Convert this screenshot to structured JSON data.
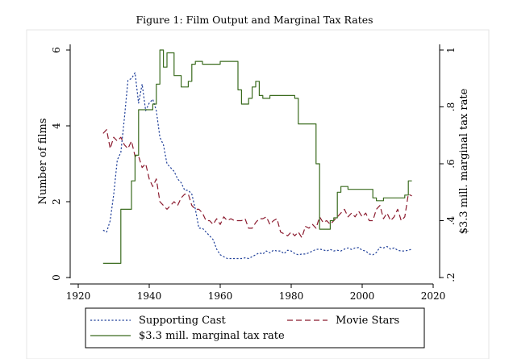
{
  "chart_data": {
    "type": "line",
    "title": "Figure 1: Film Output and Marginal Tax Rates",
    "xlabel": "",
    "ylabel": "Number of films",
    "y2label": "$3.3 mill. marginal tax rate",
    "xlim": [
      1920,
      2020
    ],
    "ylim": [
      0,
      6
    ],
    "y2lim": [
      0.2,
      1.0
    ],
    "x_ticks": [
      1920,
      1940,
      1960,
      1980,
      2000,
      2020
    ],
    "y_ticks": [
      0,
      2,
      4,
      6
    ],
    "y2_ticks": [
      0.2,
      0.4,
      0.6,
      0.8,
      1.0
    ],
    "y2_tick_labels": [
      ".2",
      ".4",
      ".6",
      ".8",
      "1"
    ],
    "grid": false,
    "legend_position": "bottom",
    "series": [
      {
        "name": "Supporting Cast",
        "axis": "left",
        "color": "#1f3f99",
        "dash": "dotted",
        "x": [
          1927,
          1928,
          1929,
          1930,
          1931,
          1932,
          1933,
          1934,
          1935,
          1936,
          1937,
          1938,
          1939,
          1940,
          1941,
          1942,
          1943,
          1944,
          1945,
          1946,
          1947,
          1948,
          1949,
          1950,
          1951,
          1952,
          1953,
          1954,
          1955,
          1956,
          1957,
          1958,
          1959,
          1960,
          1961,
          1962,
          1963,
          1964,
          1965,
          1966,
          1967,
          1968,
          1969,
          1970,
          1971,
          1972,
          1973,
          1974,
          1975,
          1976,
          1977,
          1978,
          1979,
          1980,
          1981,
          1982,
          1983,
          1984,
          1985,
          1986,
          1987,
          1988,
          1989,
          1990,
          1991,
          1992,
          1993,
          1994,
          1995,
          1996,
          1997,
          1998,
          1999,
          2000,
          2001,
          2002,
          2003,
          2004,
          2005,
          2006,
          2007,
          2008,
          2009,
          2010,
          2011,
          2012,
          2013,
          2014
        ],
        "values": [
          1.25,
          1.2,
          1.5,
          2.2,
          3.1,
          3.3,
          4.2,
          5.2,
          5.25,
          5.4,
          4.6,
          5.1,
          4.4,
          4.6,
          4.7,
          4.4,
          3.7,
          3.5,
          3.0,
          2.9,
          2.8,
          2.6,
          2.5,
          2.3,
          2.3,
          2.2,
          1.8,
          1.3,
          1.3,
          1.2,
          1.1,
          1.0,
          0.75,
          0.6,
          0.55,
          0.5,
          0.5,
          0.5,
          0.5,
          0.5,
          0.52,
          0.5,
          0.55,
          0.6,
          0.65,
          0.62,
          0.7,
          0.65,
          0.72,
          0.7,
          0.7,
          0.63,
          0.72,
          0.7,
          0.63,
          0.6,
          0.62,
          0.62,
          0.65,
          0.7,
          0.74,
          0.75,
          0.73,
          0.7,
          0.74,
          0.7,
          0.72,
          0.7,
          0.75,
          0.78,
          0.74,
          0.78,
          0.79,
          0.72,
          0.7,
          0.62,
          0.6,
          0.66,
          0.8,
          0.78,
          0.82,
          0.75,
          0.78,
          0.72,
          0.7,
          0.7,
          0.72,
          0.75
        ]
      },
      {
        "name": "Movie Stars",
        "axis": "left",
        "color": "#8b1a2e",
        "dash": "dashed",
        "x": [
          1927,
          1928,
          1929,
          1930,
          1931,
          1932,
          1933,
          1934,
          1935,
          1936,
          1937,
          1938,
          1939,
          1940,
          1941,
          1942,
          1943,
          1944,
          1945,
          1946,
          1947,
          1948,
          1949,
          1950,
          1951,
          1952,
          1953,
          1954,
          1955,
          1956,
          1957,
          1958,
          1959,
          1960,
          1961,
          1962,
          1963,
          1964,
          1965,
          1966,
          1967,
          1968,
          1969,
          1970,
          1971,
          1972,
          1973,
          1974,
          1975,
          1976,
          1977,
          1978,
          1979,
          1980,
          1981,
          1982,
          1983,
          1984,
          1985,
          1986,
          1987,
          1988,
          1989,
          1990,
          1991,
          1992,
          1993,
          1994,
          1995,
          1996,
          1997,
          1998,
          1999,
          2000,
          2001,
          2002,
          2003,
          2004,
          2005,
          2006,
          2007,
          2008,
          2009,
          2010,
          2011,
          2012,
          2013,
          2014
        ],
        "values": [
          3.8,
          3.9,
          3.4,
          3.7,
          3.6,
          3.7,
          3.5,
          3.4,
          3.6,
          3.2,
          3.2,
          2.9,
          3.0,
          2.6,
          2.4,
          2.6,
          2.0,
          1.9,
          1.8,
          1.9,
          2.0,
          1.9,
          2.1,
          2.2,
          2.2,
          1.9,
          1.8,
          1.8,
          1.7,
          1.5,
          1.5,
          1.4,
          1.55,
          1.4,
          1.6,
          1.5,
          1.55,
          1.5,
          1.5,
          1.5,
          1.55,
          1.3,
          1.3,
          1.45,
          1.55,
          1.55,
          1.6,
          1.4,
          1.5,
          1.55,
          1.2,
          1.15,
          1.1,
          1.2,
          1.1,
          1.2,
          1.05,
          1.35,
          1.3,
          1.4,
          1.3,
          1.6,
          1.45,
          1.5,
          1.4,
          1.5,
          1.6,
          1.7,
          1.8,
          1.6,
          1.7,
          1.6,
          1.75,
          1.6,
          1.7,
          1.5,
          1.5,
          1.8,
          1.9,
          1.55,
          1.7,
          1.5,
          1.6,
          1.8,
          1.5,
          1.6,
          2.2,
          2.15
        ]
      },
      {
        "name": "$3.3 mill. marginal tax rate",
        "axis": "right",
        "color": "#3a6b1e",
        "dash": "solid",
        "x": [
          1927,
          1931,
          1932,
          1934,
          1935,
          1936,
          1937,
          1938,
          1939,
          1940,
          1941,
          1942,
          1943,
          1944,
          1945,
          1946,
          1947,
          1948,
          1949,
          1950,
          1951,
          1952,
          1953,
          1954,
          1955,
          1956,
          1957,
          1958,
          1959,
          1960,
          1961,
          1962,
          1963,
          1964,
          1965,
          1966,
          1967,
          1968,
          1969,
          1970,
          1971,
          1972,
          1973,
          1974,
          1975,
          1976,
          1977,
          1978,
          1979,
          1980,
          1981,
          1982,
          1983,
          1984,
          1985,
          1986,
          1987,
          1988,
          1989,
          1990,
          1991,
          1992,
          1993,
          1994,
          1995,
          1996,
          1997,
          1998,
          1999,
          2000,
          2001,
          2002,
          2003,
          2004,
          2005,
          2006,
          2007,
          2008,
          2009,
          2010,
          2011,
          2012,
          2013,
          2014
        ],
        "values": [
          0.25,
          0.25,
          0.44,
          0.44,
          0.54,
          0.63,
          0.79,
          0.79,
          0.79,
          0.79,
          0.81,
          0.88,
          1.0,
          0.94,
          0.99,
          0.99,
          0.91,
          0.91,
          0.87,
          0.87,
          0.89,
          0.95,
          0.96,
          0.96,
          0.95,
          0.95,
          0.95,
          0.95,
          0.95,
          0.96,
          0.96,
          0.96,
          0.96,
          0.96,
          0.86,
          0.81,
          0.81,
          0.83,
          0.87,
          0.89,
          0.84,
          0.83,
          0.83,
          0.84,
          0.84,
          0.84,
          0.84,
          0.84,
          0.84,
          0.84,
          0.83,
          0.74,
          0.74,
          0.74,
          0.74,
          0.74,
          0.6,
          0.37,
          0.37,
          0.37,
          0.4,
          0.41,
          0.5,
          0.52,
          0.52,
          0.51,
          0.51,
          0.51,
          0.51,
          0.51,
          0.51,
          0.51,
          0.48,
          0.47,
          0.47,
          0.48,
          0.48,
          0.48,
          0.48,
          0.48,
          0.48,
          0.49,
          0.54,
          0.54
        ]
      }
    ]
  }
}
